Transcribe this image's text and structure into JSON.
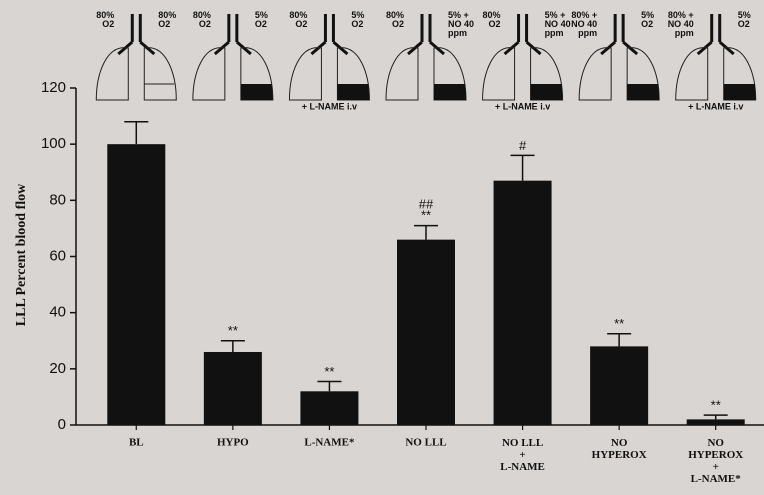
{
  "chart_data": {
    "type": "bar",
    "y_label": "LLL Percent blood flow",
    "categories": [
      "BL",
      "HYPO",
      "L-NAME*",
      "NO LLL",
      "NO LLL\n+\nL-NAME",
      "NO\nHYPEROX",
      "NO\nHYPEROX\n+\nL-NAME*"
    ],
    "values": [
      100,
      26,
      12,
      66,
      87,
      28,
      2
    ],
    "errors": [
      8,
      4,
      3.5,
      5,
      9,
      4.5,
      1.5
    ],
    "annotations": [
      null,
      "**",
      "**",
      "##\n**",
      "#",
      "**",
      "**"
    ],
    "color": "#111111",
    "ylim": [
      0,
      120
    ],
    "yticks": [
      0,
      20,
      40,
      60,
      80,
      100,
      120
    ]
  },
  "diagrams": [
    {
      "left": "80%\nO2",
      "right": "80%\nO2",
      "bottom": null
    },
    {
      "left": "80%\nO2",
      "right": "5%\nO2",
      "bottom": null
    },
    {
      "left": "80%\nO2",
      "right": "5%\nO2",
      "bottom": "+ L-NAME i.v"
    },
    {
      "left": "80%\nO2",
      "right": "5% +\nNO 40\nppm",
      "bottom": null
    },
    {
      "left": "80%\nO2",
      "right": "5% +\nNO 40\nppm",
      "bottom": "+ L-NAME i.v"
    },
    {
      "left": "80% +\nNO 40\nppm",
      "right": "5%\nO2",
      "bottom": null
    },
    {
      "left": "80% +\nNO 40\nppm",
      "right": "5%\nO2",
      "bottom": "+ L-NAME i.v"
    }
  ]
}
